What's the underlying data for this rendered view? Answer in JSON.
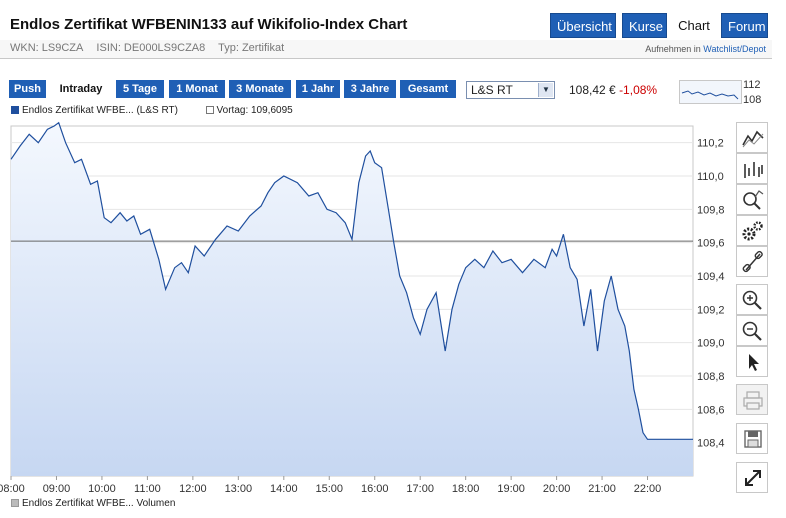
{
  "header": {
    "title": "Endlos Zertifikat WFBENIN133 auf Wikifolio-Index Chart",
    "nav": [
      {
        "label": "Übersicht",
        "active": false
      },
      {
        "label": "Kurse",
        "active": false
      },
      {
        "label": "Chart",
        "active": true
      },
      {
        "label": "Forum",
        "active": false
      }
    ]
  },
  "meta": {
    "wkn": "WKN: LS9CZA",
    "isin": "ISIN: DE000LS9CZA8",
    "type": "Typ: Zertifikat",
    "watch_prefix": "Aufnehmen in",
    "watch_link": "Watchlist/Depot"
  },
  "timeframes": [
    {
      "label": "Push",
      "selected": false
    },
    {
      "label": "Intraday",
      "selected": true
    },
    {
      "label": "5 Tage",
      "selected": false
    },
    {
      "label": "1 Monat",
      "selected": false
    },
    {
      "label": "3 Monate",
      "selected": false
    },
    {
      "label": "1 Jahr",
      "selected": false
    },
    {
      "label": "3 Jahre",
      "selected": false
    },
    {
      "label": "Gesamt",
      "selected": false
    }
  ],
  "exchange": {
    "selected": "L&S RT"
  },
  "quote": {
    "price": "108,42 €",
    "change": "-1,08%"
  },
  "sparkline": {
    "high_label": "112",
    "low_label": "108"
  },
  "legend": {
    "series": "Endlos Zertifikat WFBE... (L&S RT)",
    "previous": "Vortag: 109,6095",
    "volume": "Endlos Zertifikat WFBE... Volumen"
  },
  "colors": {
    "accent": "#1f5fb5",
    "line": "#1f4f9e",
    "fill": "#c6d7f2",
    "negative": "#cc0000"
  },
  "tools": [
    "line-chart-icon",
    "bar-chart-icon",
    "zoom-select-icon",
    "settings-gears-icon",
    "link-icon",
    "zoom-in-icon",
    "zoom-out-icon",
    "pointer-icon",
    "print-icon",
    "save-icon",
    "fullscreen-icon"
  ],
  "chart_data": {
    "type": "area",
    "title": "",
    "xlabel": "",
    "ylabel": "",
    "xlim": [
      8.0,
      23.0
    ],
    "ylim": [
      108.2,
      110.3
    ],
    "y_ticks": [
      "108,4",
      "108,6",
      "108,8",
      "109,0",
      "109,2",
      "109,4",
      "109,6",
      "109,8",
      "110,0",
      "110,2"
    ],
    "x_ticks": [
      "08:00",
      "09:00",
      "10:00",
      "11:00",
      "12:00",
      "13:00",
      "14:00",
      "15:00",
      "16:00",
      "17:00",
      "18:00",
      "19:00",
      "20:00",
      "21:00",
      "22:00"
    ],
    "reference_line": {
      "label": "Vortag",
      "value": 109.6095
    },
    "series": [
      {
        "name": "Endlos Zertifikat WFBE... (L&S RT)",
        "x": [
          8.0,
          8.2,
          8.4,
          8.6,
          8.8,
          8.95,
          9.05,
          9.2,
          9.4,
          9.55,
          9.75,
          9.9,
          10.05,
          10.2,
          10.4,
          10.55,
          10.7,
          10.85,
          11.05,
          11.25,
          11.4,
          11.6,
          11.75,
          11.9,
          12.05,
          12.25,
          12.5,
          12.75,
          13.0,
          13.25,
          13.5,
          13.65,
          13.8,
          14.0,
          14.3,
          14.55,
          14.75,
          14.95,
          15.15,
          15.35,
          15.5,
          15.65,
          15.8,
          15.9,
          16.0,
          16.15,
          16.3,
          16.42,
          16.55,
          16.7,
          16.85,
          17.0,
          17.15,
          17.35,
          17.55,
          17.7,
          17.85,
          18.0,
          18.2,
          18.4,
          18.6,
          18.8,
          19.0,
          19.25,
          19.5,
          19.75,
          19.9,
          20.0,
          20.15,
          20.3,
          20.45,
          20.6,
          20.75,
          20.9,
          21.05,
          21.2,
          21.35,
          21.5,
          21.6,
          21.7,
          21.8,
          21.9,
          22.0,
          22.5,
          23.0
        ],
        "values": [
          110.1,
          110.18,
          110.25,
          110.2,
          110.28,
          110.3,
          110.32,
          110.2,
          110.08,
          110.1,
          109.95,
          109.97,
          109.75,
          109.72,
          109.78,
          109.73,
          109.76,
          109.65,
          109.68,
          109.5,
          109.32,
          109.45,
          109.48,
          109.42,
          109.58,
          109.52,
          109.62,
          109.7,
          109.67,
          109.76,
          109.82,
          109.9,
          109.96,
          110.0,
          109.96,
          109.88,
          109.9,
          109.8,
          109.78,
          109.72,
          109.62,
          109.96,
          110.12,
          110.15,
          110.08,
          110.05,
          109.8,
          109.6,
          109.4,
          109.3,
          109.15,
          109.05,
          109.2,
          109.3,
          108.95,
          109.2,
          109.35,
          109.45,
          109.5,
          109.45,
          109.55,
          109.48,
          109.5,
          109.42,
          109.5,
          109.45,
          109.56,
          109.52,
          109.65,
          109.45,
          109.38,
          109.1,
          109.32,
          108.95,
          109.25,
          109.4,
          109.2,
          109.1,
          108.95,
          108.72,
          108.6,
          108.46,
          108.42,
          108.42,
          108.42
        ]
      }
    ]
  }
}
